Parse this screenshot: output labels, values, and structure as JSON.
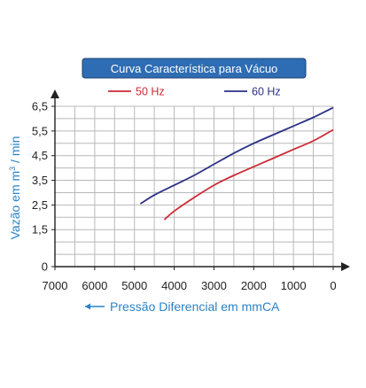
{
  "chart_data": {
    "type": "line",
    "title": "Curva Característica para Vácuo",
    "xlabel": "Pressão Diferencial em mmCA",
    "ylabel": "Vazão em m³ / min",
    "ylabel_parts": {
      "before": "Vazão em m",
      "superscript": "3",
      "after": " / min"
    },
    "xlim": [
      7000,
      0
    ],
    "x_reversed": true,
    "ylim": [
      0,
      6.5
    ],
    "x_ticks": [
      7000,
      6000,
      5000,
      4000,
      3000,
      2000,
      1000,
      0
    ],
    "y_ticks": [
      "0",
      "1,5",
      "2,5",
      "3,5",
      "4,5",
      "5,5",
      "6,5"
    ],
    "y_tick_values": [
      0,
      1.5,
      2.5,
      3.5,
      4.5,
      5.5,
      6.5
    ],
    "grid": true,
    "legend_position": "top",
    "series": [
      {
        "name": "50 Hz",
        "color": "#cc2a36",
        "x": [
          4250,
          4000,
          3500,
          3000,
          2500,
          2000,
          1500,
          1000,
          500,
          0
        ],
        "y": [
          1.9,
          2.25,
          2.8,
          3.3,
          3.7,
          4.05,
          4.4,
          4.75,
          5.1,
          5.55
        ]
      },
      {
        "name": "60 Hz",
        "color": "#2b3184",
        "x": [
          4850,
          4500,
          4000,
          3500,
          3000,
          2500,
          2000,
          1500,
          1000,
          500,
          0
        ],
        "y": [
          2.55,
          2.9,
          3.3,
          3.7,
          4.15,
          4.6,
          5.0,
          5.35,
          5.7,
          6.05,
          6.45
        ]
      }
    ]
  }
}
